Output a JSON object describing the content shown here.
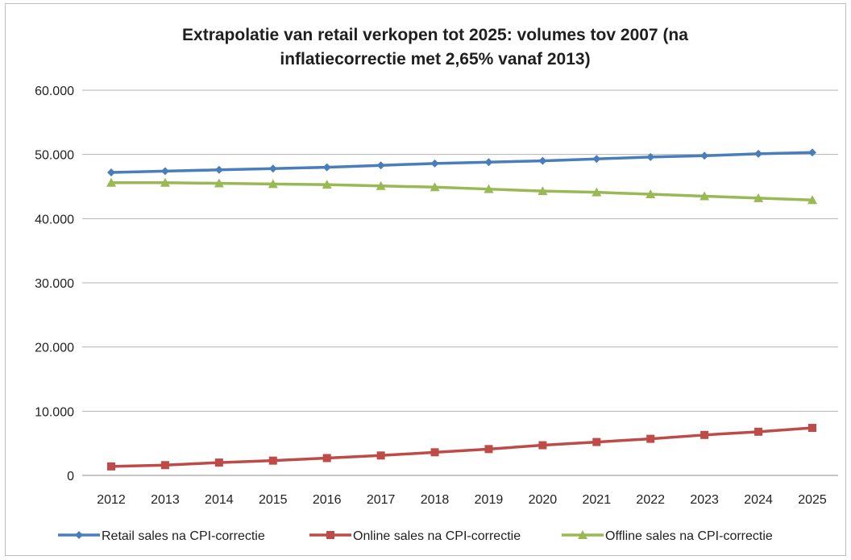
{
  "chart_data": {
    "type": "line",
    "title_lines": [
      "Extrapolatie van retail verkopen tot 2025: volumes tov 2007 (na",
      "inflatiecorrectie met 2,65% vanaf 2013)"
    ],
    "x": [
      "2012",
      "2013",
      "2014",
      "2015",
      "2016",
      "2017",
      "2018",
      "2019",
      "2020",
      "2021",
      "2022",
      "2023",
      "2024",
      "2025"
    ],
    "ylim": [
      0,
      60000
    ],
    "yticks": [
      {
        "value": 0,
        "label": "0"
      },
      {
        "value": 10000,
        "label": "10.000"
      },
      {
        "value": 20000,
        "label": "20.000"
      },
      {
        "value": 30000,
        "label": "30.000"
      },
      {
        "value": 40000,
        "label": "40.000"
      },
      {
        "value": 50000,
        "label": "50.000"
      },
      {
        "value": 60000,
        "label": "60.000"
      }
    ],
    "grid": true,
    "legend_position": "bottom",
    "series": [
      {
        "name": "Retail sales na CPI-correctie",
        "color": "#4a7ebb",
        "marker": "diamond",
        "values": [
          47200,
          47400,
          47600,
          47800,
          48000,
          48300,
          48600,
          48800,
          49000,
          49300,
          49600,
          49800,
          50100,
          50300
        ]
      },
      {
        "name": "Online sales na CPI-correctie",
        "color": "#be4b48",
        "marker": "square",
        "values": [
          1400,
          1600,
          2000,
          2300,
          2700,
          3100,
          3600,
          4100,
          4700,
          5200,
          5700,
          6300,
          6800,
          7400
        ]
      },
      {
        "name": "Offline sales na CPI-correctie",
        "color": "#98b954",
        "marker": "triangle",
        "values": [
          45600,
          45600,
          45500,
          45400,
          45300,
          45100,
          44900,
          44600,
          44300,
          44100,
          43800,
          43500,
          43200,
          42900
        ]
      }
    ]
  }
}
